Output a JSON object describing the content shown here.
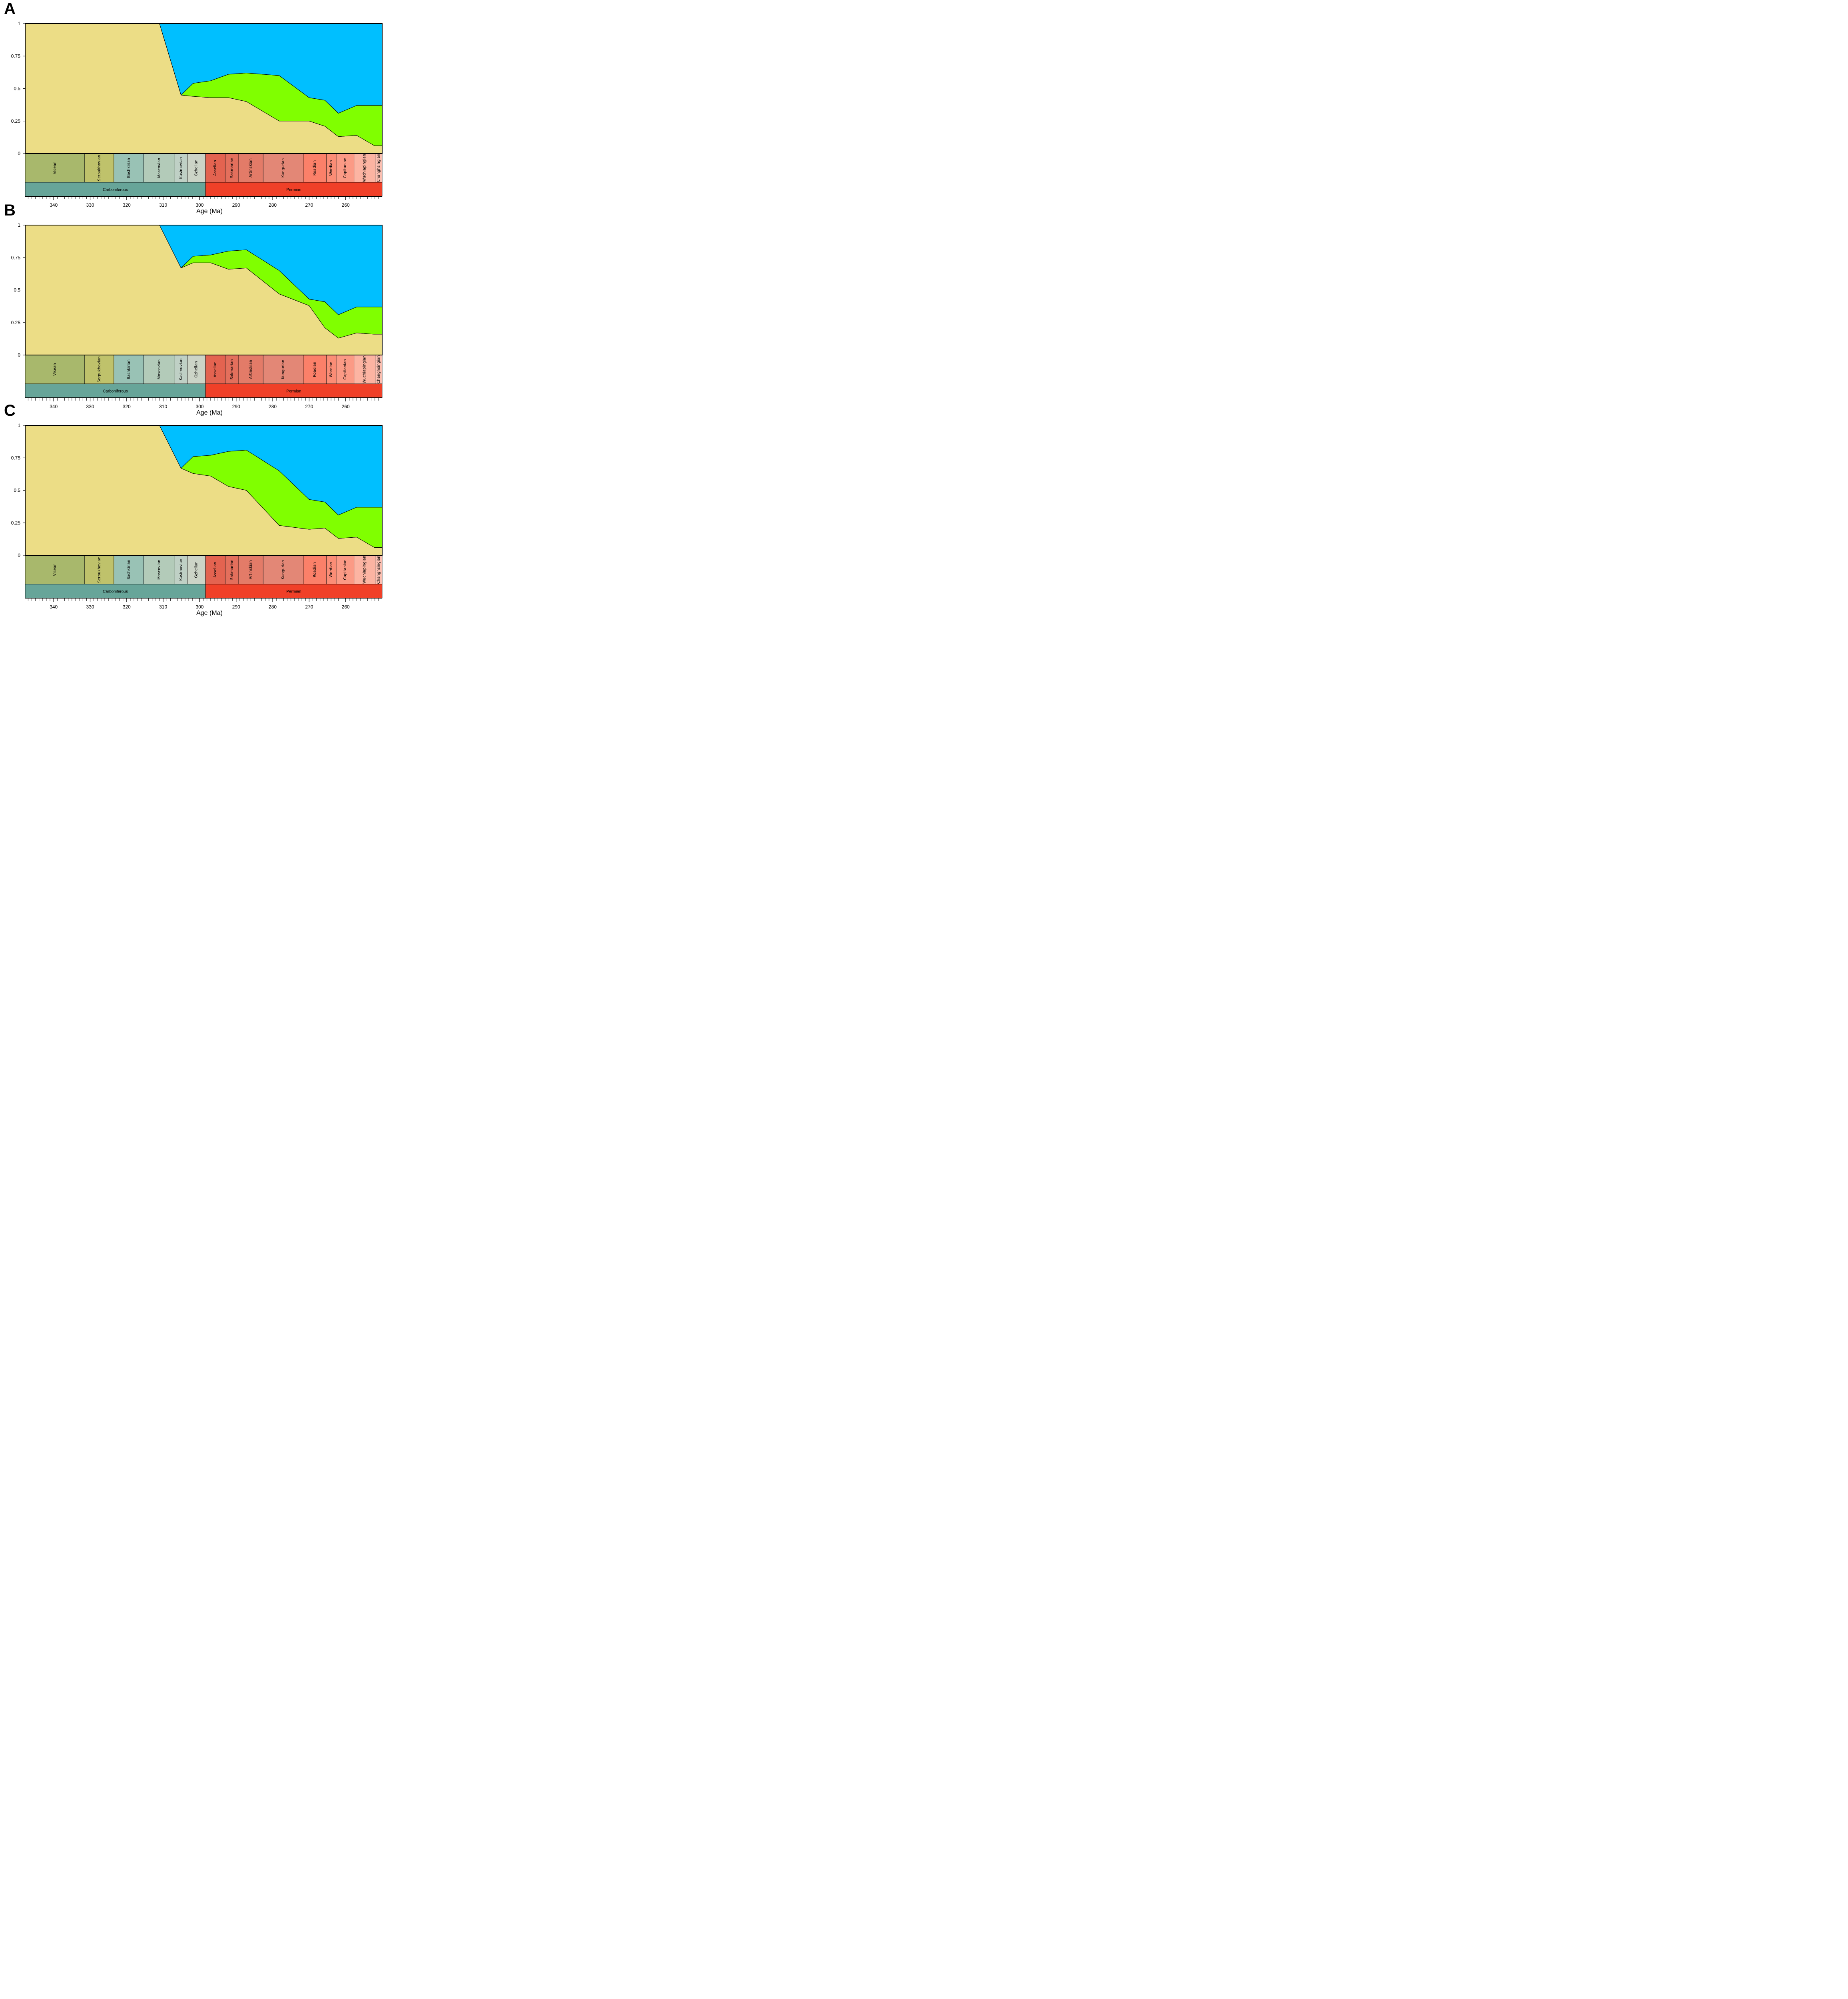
{
  "figure": {
    "panels": [
      "A",
      "B",
      "C"
    ],
    "xlabel": "Age (Ma)",
    "yticks": [
      "0",
      "0.25",
      "0.5",
      "0.75",
      "1"
    ],
    "xticks": [
      "340",
      "330",
      "320",
      "310",
      "300",
      "290",
      "280",
      "270",
      "260"
    ],
    "colors": {
      "layer_bottom": "#ECDD86",
      "layer_middle": "#80FF00",
      "layer_top": "#00BFFF"
    }
  },
  "timescale": {
    "stages": [
      {
        "name": "Visean",
        "start": 347.8,
        "end": 331.5,
        "color": "#A8B86C"
      },
      {
        "name": "Serpukhovian",
        "start": 331.5,
        "end": 323.5,
        "color": "#BFC26B"
      },
      {
        "name": "Bashkirian",
        "start": 323.5,
        "end": 315.3,
        "color": "#99C2B5"
      },
      {
        "name": "Moscovian",
        "start": 315.3,
        "end": 306.8,
        "color": "#B3CBB9"
      },
      {
        "name": "Kasimovian",
        "start": 306.8,
        "end": 303.4,
        "color": "#BFD0C5"
      },
      {
        "name": "Gzhelian",
        "start": 303.4,
        "end": 298.4,
        "color": "#CCD4C7"
      },
      {
        "name": "Asselian",
        "start": 298.4,
        "end": 293.0,
        "color": "#E36350"
      },
      {
        "name": "Sakmarian",
        "start": 293.0,
        "end": 289.3,
        "color": "#E36F5C"
      },
      {
        "name": "Artinskian",
        "start": 289.3,
        "end": 282.6,
        "color": "#E37B68"
      },
      {
        "name": "Kungurian",
        "start": 282.6,
        "end": 271.6,
        "color": "#E38776"
      },
      {
        "name": "Roadian",
        "start": 271.6,
        "end": 265.3,
        "color": "#FB8069"
      },
      {
        "name": "Wordian",
        "start": 265.3,
        "end": 262.6,
        "color": "#FB8D76"
      },
      {
        "name": "Capitanian",
        "start": 262.6,
        "end": 257.7,
        "color": "#FB9A85"
      },
      {
        "name": "Wuchiapingian",
        "start": 257.7,
        "end": 251.9,
        "color": "#FCB4A2"
      },
      {
        "name": "Changhsingian",
        "start": 251.9,
        "end": 250.0,
        "color": "#FCC0B2"
      }
    ],
    "periods": [
      {
        "name": "Carboniferous",
        "start": 347.8,
        "end": 298.4,
        "color": "#67A599"
      },
      {
        "name": "Permian",
        "start": 298.4,
        "end": 250.0,
        "color": "#F04028"
      }
    ]
  },
  "chart_data": [
    {
      "type": "area",
      "title": "A",
      "xlabel": "Age (Ma)",
      "ylabel": "",
      "xlim": [
        347.8,
        250.0
      ],
      "ylim": [
        0,
        1
      ],
      "x": [
        347.8,
        311.0,
        305.1,
        301.8,
        297.0,
        292.1,
        287.2,
        278.2,
        270.0,
        265.7,
        262.0,
        257.0,
        252.1,
        250.0
      ],
      "series": [
        {
          "name": "bottom",
          "values": [
            1.0,
            1.0,
            0.45,
            0.44,
            0.43,
            0.43,
            0.4,
            0.25,
            0.25,
            0.21,
            0.13,
            0.14,
            0.06,
            0.06
          ]
        },
        {
          "name": "middle",
          "values": [
            0.0,
            0.0,
            0.0,
            0.1,
            0.13,
            0.18,
            0.22,
            0.35,
            0.18,
            0.2,
            0.18,
            0.23,
            0.31,
            0.31
          ]
        },
        {
          "name": "top",
          "values": [
            0.0,
            0.0,
            0.55,
            0.46,
            0.44,
            0.39,
            0.38,
            0.4,
            0.57,
            0.59,
            0.69,
            0.63,
            0.63,
            0.63
          ]
        }
      ]
    },
    {
      "type": "area",
      "title": "B",
      "xlabel": "Age (Ma)",
      "ylabel": "",
      "xlim": [
        347.8,
        250.0
      ],
      "ylim": [
        0,
        1
      ],
      "x": [
        347.8,
        311.0,
        305.1,
        301.8,
        297.0,
        292.1,
        287.2,
        278.2,
        270.0,
        265.7,
        262.0,
        257.0,
        252.1,
        250.0
      ],
      "series": [
        {
          "name": "bottom",
          "values": [
            1.0,
            1.0,
            0.67,
            0.71,
            0.71,
            0.66,
            0.67,
            0.47,
            0.38,
            0.21,
            0.13,
            0.17,
            0.16,
            0.16
          ]
        },
        {
          "name": "middle",
          "values": [
            0.0,
            0.0,
            0.0,
            0.05,
            0.06,
            0.14,
            0.14,
            0.18,
            0.05,
            0.2,
            0.18,
            0.2,
            0.21,
            0.21
          ]
        },
        {
          "name": "top",
          "values": [
            0.0,
            0.0,
            0.33,
            0.24,
            0.23,
            0.2,
            0.19,
            0.35,
            0.57,
            0.59,
            0.69,
            0.63,
            0.63,
            0.63
          ]
        }
      ]
    },
    {
      "type": "area",
      "title": "C",
      "xlabel": "Age (Ma)",
      "ylabel": "",
      "xlim": [
        347.8,
        250.0
      ],
      "ylim": [
        0,
        1
      ],
      "x": [
        347.8,
        311.0,
        305.1,
        301.8,
        297.0,
        292.1,
        287.2,
        278.2,
        270.0,
        265.7,
        262.0,
        257.0,
        252.1,
        250.0
      ],
      "series": [
        {
          "name": "bottom",
          "values": [
            1.0,
            1.0,
            0.67,
            0.63,
            0.61,
            0.53,
            0.5,
            0.23,
            0.2,
            0.21,
            0.13,
            0.14,
            0.06,
            0.06
          ]
        },
        {
          "name": "middle",
          "values": [
            0.0,
            0.0,
            0.0,
            0.13,
            0.16,
            0.27,
            0.31,
            0.42,
            0.23,
            0.2,
            0.18,
            0.23,
            0.31,
            0.31
          ]
        },
        {
          "name": "top",
          "values": [
            0.0,
            0.0,
            0.33,
            0.24,
            0.23,
            0.2,
            0.19,
            0.35,
            0.57,
            0.59,
            0.69,
            0.63,
            0.63,
            0.63
          ]
        }
      ]
    }
  ]
}
